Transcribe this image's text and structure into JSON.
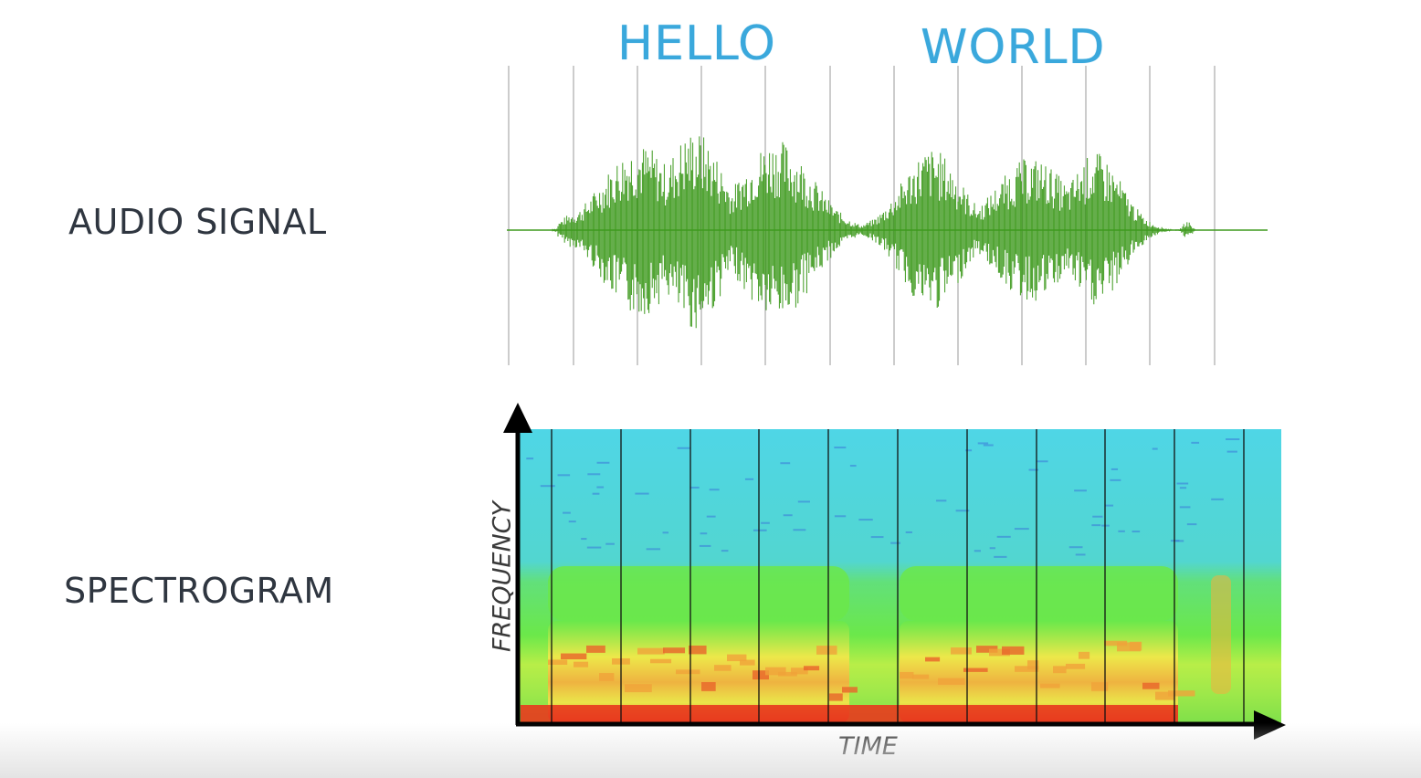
{
  "labels": {
    "audio_signal": "AUDIO SIGNAL",
    "spectrogram": "SPECTROGRAM"
  },
  "words": [
    "HELLO",
    "WORLD"
  ],
  "axes": {
    "x": "TIME",
    "y": "FREQUENCY"
  },
  "colors": {
    "word": "#3aa8dc",
    "waveform": "#3e9a1e",
    "label": "#2f3640",
    "spectrogram_low": "#4fd6e6",
    "spectrogram_mid": "#6be84a",
    "spectrogram_high": "#f0e84a",
    "spectrogram_peak": "#e83a1e"
  },
  "icons": {
    "y_arrow": "arrow-up-icon",
    "x_arrow": "arrow-right-icon"
  }
}
